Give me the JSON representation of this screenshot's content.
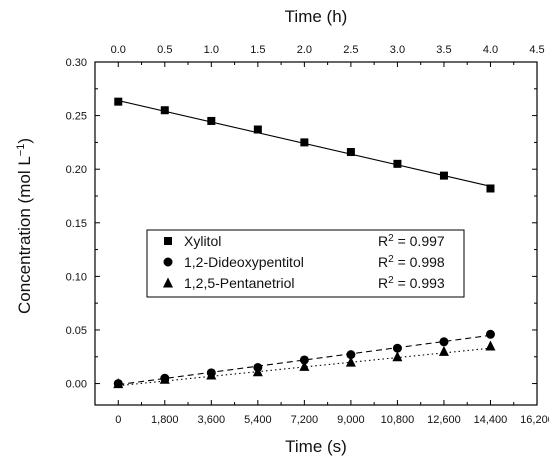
{
  "chart_data": {
    "type": "scatter",
    "title": "",
    "xlabel": "Time (s)",
    "x2label": "Time (h)",
    "ylabel": "Concentration (mol L",
    "ylabel_sup": "−1",
    "ylabel_close": ")",
    "xlim": [
      -900,
      16200
    ],
    "x2lim": [
      -0.25,
      4.5
    ],
    "ylim": [
      -0.02,
      0.3
    ],
    "xticks": [
      0,
      1800,
      3600,
      5400,
      7200,
      9000,
      10800,
      12600,
      14400,
      16200
    ],
    "xtick_labels": [
      "0",
      "1,800",
      "3,600",
      "5,400",
      "7,200",
      "9,000",
      "10,800",
      "12,600",
      "14,400",
      "16,200"
    ],
    "x2ticks": [
      0.0,
      0.5,
      1.0,
      1.5,
      2.0,
      2.5,
      3.0,
      3.5,
      4.0,
      4.5
    ],
    "x2tick_labels": [
      "0.0",
      "0.5",
      "1.0",
      "1.5",
      "2.0",
      "2.5",
      "3.0",
      "3.5",
      "4.0",
      "4.5"
    ],
    "yticks": [
      0.0,
      0.05,
      0.1,
      0.15,
      0.2,
      0.25,
      0.3
    ],
    "ytick_labels": [
      "0.00",
      "0.05",
      "0.10",
      "0.15",
      "0.20",
      "0.25",
      "0.30"
    ],
    "grid": false,
    "legend_position": "center-left",
    "series": [
      {
        "name": "Xylitol",
        "marker": "square",
        "line_style": "solid",
        "r2_label": "R",
        "r2_sup": "2",
        "r2_value": " = 0.997",
        "x": [
          0,
          1800,
          3600,
          5400,
          7200,
          9000,
          10800,
          12600,
          14400
        ],
        "y": [
          0.263,
          0.255,
          0.245,
          0.237,
          0.225,
          0.216,
          0.205,
          0.194,
          0.182
        ],
        "fit": [
          [
            0,
            0.264
          ],
          [
            14400,
            0.184
          ]
        ]
      },
      {
        "name": "1,2-Dideoxypentitol",
        "marker": "circle",
        "line_style": "dashed",
        "r2_label": "R",
        "r2_sup": "2",
        "r2_value": " = 0.998",
        "x": [
          0,
          1800,
          3600,
          5400,
          7200,
          9000,
          10800,
          12600,
          14400
        ],
        "y": [
          0.0,
          0.005,
          0.01,
          0.015,
          0.022,
          0.027,
          0.033,
          0.039,
          0.046
        ],
        "fit": [
          [
            0,
            -0.001
          ],
          [
            14400,
            0.045
          ]
        ]
      },
      {
        "name": "1,2,5-Pentanetriol",
        "marker": "triangle",
        "line_style": "dotted",
        "r2_label": "R",
        "r2_sup": "2",
        "r2_value": " = 0.993",
        "x": [
          0,
          1800,
          3600,
          5400,
          7200,
          9000,
          10800,
          12600,
          14400
        ],
        "y": [
          0.0,
          0.004,
          0.008,
          0.011,
          0.016,
          0.02,
          0.025,
          0.03,
          0.035
        ],
        "fit": [
          [
            0,
            -0.002
          ],
          [
            14400,
            0.033
          ]
        ]
      }
    ]
  }
}
